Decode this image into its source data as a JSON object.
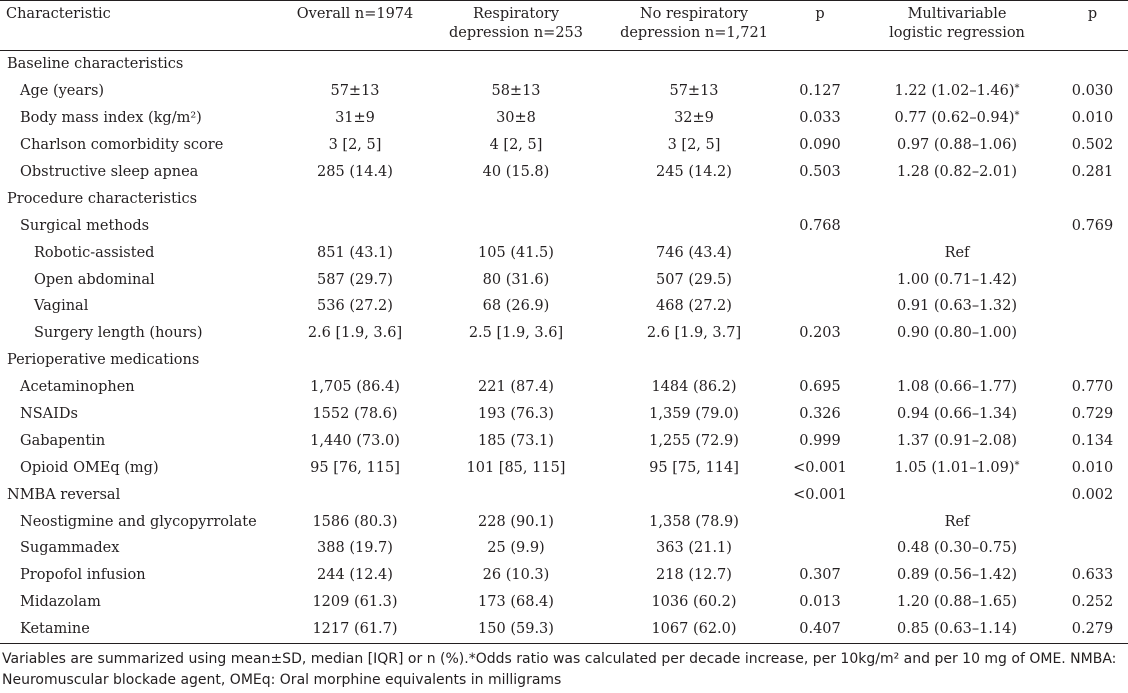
{
  "headers": [
    "Characteristic",
    "Overall n=1974",
    "Respiratory depression n=253",
    "No respiratory depression n=1,721",
    "p",
    "Multivariable logistic regression",
    "p"
  ],
  "header_lines": {
    "c2": [
      "Respiratory",
      "depression n=253"
    ],
    "c3": [
      "No respiratory",
      "depression n=1,721"
    ],
    "c5": [
      "Multivariable",
      "logistic regression"
    ]
  },
  "rows": [
    {
      "label": "Baseline characteristics",
      "level": 0,
      "overall": "",
      "resp": "",
      "noresp": "",
      "p": "",
      "or": "",
      "or_star": false,
      "p2": ""
    },
    {
      "label": "Age (years)",
      "level": 1,
      "overall": "57±13",
      "resp": "58±13",
      "noresp": "57±13",
      "p": "0.127",
      "or": "1.22 (1.02–1.46)",
      "or_star": true,
      "p2": "0.030"
    },
    {
      "label": "Body mass index (kg/m²)",
      "level": 1,
      "overall": "31±9",
      "resp": "30±8",
      "noresp": "32±9",
      "p": "0.033",
      "or": "0.77 (0.62–0.94)",
      "or_star": true,
      "p2": "0.010"
    },
    {
      "label": "Charlson comorbidity score",
      "level": 1,
      "overall": "3 [2, 5]",
      "resp": "4 [2, 5]",
      "noresp": "3 [2, 5]",
      "p": "0.090",
      "or": "0.97 (0.88–1.06)",
      "or_star": false,
      "p2": "0.502"
    },
    {
      "label": "Obstructive sleep apnea",
      "level": 1,
      "overall": "285 (14.4)",
      "resp": "40 (15.8)",
      "noresp": "245 (14.2)",
      "p": "0.503",
      "or": "1.28 (0.82–2.01)",
      "or_star": false,
      "p2": "0.281"
    },
    {
      "label": "Procedure characteristics",
      "level": 0,
      "overall": "",
      "resp": "",
      "noresp": "",
      "p": "",
      "or": "",
      "or_star": false,
      "p2": ""
    },
    {
      "label": "Surgical methods",
      "level": 1,
      "overall": "",
      "resp": "",
      "noresp": "",
      "p": "0.768",
      "or": "",
      "or_star": false,
      "p2": "0.769"
    },
    {
      "label": "Robotic-assisted",
      "level": 2,
      "overall": "851 (43.1)",
      "resp": "105 (41.5)",
      "noresp": "746 (43.4)",
      "p": "",
      "or": "Ref",
      "or_star": false,
      "p2": ""
    },
    {
      "label": "Open abdominal",
      "level": 2,
      "overall": "587 (29.7)",
      "resp": "80 (31.6)",
      "noresp": "507 (29.5)",
      "p": "",
      "or": "1.00 (0.71–1.42)",
      "or_star": false,
      "p2": ""
    },
    {
      "label": "Vaginal",
      "level": 2,
      "overall": "536 (27.2)",
      "resp": "68 (26.9)",
      "noresp": "468 (27.2)",
      "p": "",
      "or": "0.91 (0.63–1.32)",
      "or_star": false,
      "p2": ""
    },
    {
      "label": "Surgery length (hours)",
      "level": 2,
      "overall": "2.6 [1.9, 3.6]",
      "resp": "2.5 [1.9, 3.6]",
      "noresp": "2.6 [1.9, 3.7]",
      "p": "0.203",
      "or": "0.90 (0.80–1.00)",
      "or_star": false,
      "p2": ""
    },
    {
      "label": "Perioperative medications",
      "level": 0,
      "overall": "",
      "resp": "",
      "noresp": "",
      "p": "",
      "or": "",
      "or_star": false,
      "p2": ""
    },
    {
      "label": "Acetaminophen",
      "level": 1,
      "overall": "1,705 (86.4)",
      "resp": "221 (87.4)",
      "noresp": "1484 (86.2)",
      "p": "0.695",
      "or": "1.08 (0.66–1.77)",
      "or_star": false,
      "p2": "0.770"
    },
    {
      "label": "NSAIDs",
      "level": 1,
      "overall": "1552 (78.6)",
      "resp": "193 (76.3)",
      "noresp": "1,359 (79.0)",
      "p": "0.326",
      "or": "0.94 (0.66–1.34)",
      "or_star": false,
      "p2": "0.729"
    },
    {
      "label": "Gabapentin",
      "level": 1,
      "overall": "1,440 (73.0)",
      "resp": "185 (73.1)",
      "noresp": "1,255 (72.9)",
      "p": "0.999",
      "or": "1.37 (0.91–2.08)",
      "or_star": false,
      "p2": "0.134"
    },
    {
      "label": "Opioid OMEq (mg)",
      "level": 1,
      "overall": "95 [76, 115]",
      "resp": "101 [85, 115]",
      "noresp": "95 [75, 114]",
      "p": "<0.001",
      "or": "1.05 (1.01–1.09)",
      "or_star": true,
      "p2": "0.010"
    },
    {
      "label": "NMBA reversal",
      "level": 0,
      "overall": "",
      "resp": "",
      "noresp": "",
      "p": "<0.001",
      "or": "",
      "or_star": false,
      "p2": "0.002"
    },
    {
      "label": "Neostigmine and glycopyrrolate",
      "level": 1,
      "overall": "1586 (80.3)",
      "resp": "228 (90.1)",
      "noresp": "1,358 (78.9)",
      "p": "",
      "or": "Ref",
      "or_star": false,
      "p2": ""
    },
    {
      "label": "Sugammadex",
      "level": 1,
      "overall": "388 (19.7)",
      "resp": "25 (9.9)",
      "noresp": "363 (21.1)",
      "p": "",
      "or": "0.48 (0.30–0.75)",
      "or_star": false,
      "p2": ""
    },
    {
      "label": "Propofol infusion",
      "level": 1,
      "overall": "244 (12.4)",
      "resp": "26 (10.3)",
      "noresp": "218 (12.7)",
      "p": "0.307",
      "or": "0.89 (0.56–1.42)",
      "or_star": false,
      "p2": "0.633"
    },
    {
      "label": "Midazolam",
      "level": 1,
      "overall": "1209 (61.3)",
      "resp": "173 (68.4)",
      "noresp": "1036 (60.2)",
      "p": "0.013",
      "or": "1.20 (0.88–1.65)",
      "or_star": false,
      "p2": "0.252"
    },
    {
      "label": "Ketamine",
      "level": 1,
      "overall": "1217 (61.7)",
      "resp": "150 (59.3)",
      "noresp": "1067 (62.0)",
      "p": "0.407",
      "or": "0.85 (0.63–1.14)",
      "or_star": false,
      "p2": "0.279"
    }
  ],
  "star_symbol": "*",
  "footnote": "Variables are summarized using mean±SD, median [IQR] or n (%).*Odds ratio was calculated per decade increase, per 10kg/m² and per 10 mg of OME. NMBA: Neuromuscular blockade agent, OMEq: Oral morphine equivalents in milligrams"
}
